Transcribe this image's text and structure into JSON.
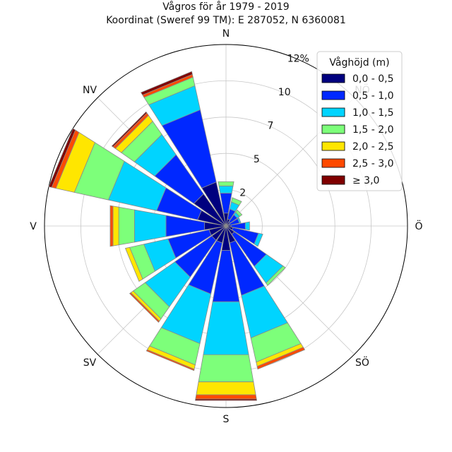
{
  "chart_data": {
    "type": "polar-stacked-bar",
    "title": "Vågros för år 1979 - 2019",
    "subtitle": "Koordinat (Sweref 99 TM): E 287052, N 6360081",
    "directions_deg": [
      0,
      22.5,
      45,
      67.5,
      90,
      112.5,
      135,
      157.5,
      180,
      202.5,
      225,
      247.5,
      270,
      292.5,
      315,
      337.5
    ],
    "direction_labels": [
      {
        "deg": 0,
        "text": "N"
      },
      {
        "deg": 45,
        "text": "NÖ"
      },
      {
        "deg": 90,
        "text": "Ö"
      },
      {
        "deg": 135,
        "text": "SÖ"
      },
      {
        "deg": 180,
        "text": "S"
      },
      {
        "deg": 225,
        "text": "SV"
      },
      {
        "deg": 270,
        "text": "V"
      },
      {
        "deg": 315,
        "text": "NV"
      }
    ],
    "r_ticks": [
      "2",
      "5",
      "7",
      "10",
      "12%"
    ],
    "r_tick_values": [
      2.5,
      5,
      7.5,
      10,
      12.5
    ],
    "r_max": 12.5,
    "legend_title": "Våghöjd (m)",
    "legend_position": "top-right",
    "series": [
      {
        "name": "0,0 - 0,5",
        "color": "#00007f",
        "values": [
          0.9,
          0.5,
          0.35,
          0.25,
          0.35,
          0.5,
          0.7,
          1.2,
          1.7,
          1.2,
          1.2,
          1.2,
          1.5,
          2.0,
          2.7,
          3.1
        ]
      },
      {
        "name": "0,5 - 1,0",
        "color": "#0028ff",
        "values": [
          1.4,
          0.7,
          0.6,
          0.7,
          1.0,
          1.8,
          2.7,
          3.7,
          3.6,
          3.6,
          3.1,
          2.9,
          2.7,
          2.9,
          3.3,
          5.1
        ]
      },
      {
        "name": "1,0 - 1,5",
        "color": "#00d4ff",
        "values": [
          0.5,
          0.5,
          0.2,
          0.1,
          0.3,
          0.3,
          1.4,
          3.0,
          3.7,
          3.5,
          2.5,
          1.7,
          2.2,
          3.4,
          1.7,
          1.7
        ]
      },
      {
        "name": "1,5 - 2,0",
        "color": "#7dff7a",
        "values": [
          0.3,
          0.3,
          0.2,
          0.0,
          0.0,
          0.0,
          0.2,
          1.7,
          1.9,
          1.5,
          1.0,
          1.0,
          1.1,
          2.4,
          1.1,
          0.6
        ]
      },
      {
        "name": "2,0 - 2,5",
        "color": "#ffe600",
        "values": [
          0.0,
          0.0,
          0.0,
          0.0,
          0.0,
          0.0,
          0.0,
          0.3,
          0.9,
          0.3,
          0.2,
          0.3,
          0.4,
          1.3,
          0.5,
          0.0
        ]
      },
      {
        "name": "2,5 - 3,0",
        "color": "#ff4a00",
        "values": [
          0.0,
          0.0,
          0.0,
          0.0,
          0.0,
          0.0,
          0.0,
          0.2,
          0.3,
          0.1,
          0.1,
          0.0,
          0.2,
          0.3,
          0.2,
          0.2
        ]
      },
      {
        "name": "≥ 3,0",
        "color": "#800000",
        "values": [
          0.0,
          0.0,
          0.0,
          0.0,
          0.0,
          0.0,
          0.0,
          0.0,
          0.1,
          0.0,
          0.0,
          0.0,
          0.0,
          0.2,
          0.1,
          0.2
        ]
      }
    ],
    "grid": true
  }
}
